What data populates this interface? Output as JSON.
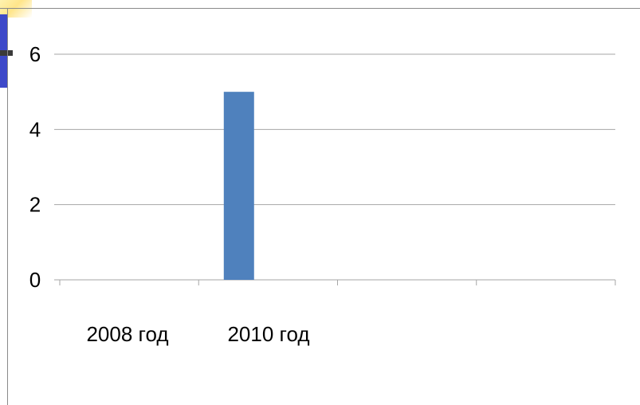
{
  "chart_data": {
    "type": "bar",
    "categories": [
      "2008 год",
      "2010 год",
      "",
      ""
    ],
    "values": [
      0,
      5,
      0,
      0
    ],
    "ylim": [
      0,
      6
    ],
    "yticks": [
      0,
      2,
      4,
      6
    ],
    "grid": true,
    "legend": "none",
    "title": "",
    "xlabel": "",
    "ylabel": "",
    "colors": {
      "bar": "#4f81bd",
      "grid": "#a6a6a6",
      "axis": "#a6a6a6"
    }
  }
}
